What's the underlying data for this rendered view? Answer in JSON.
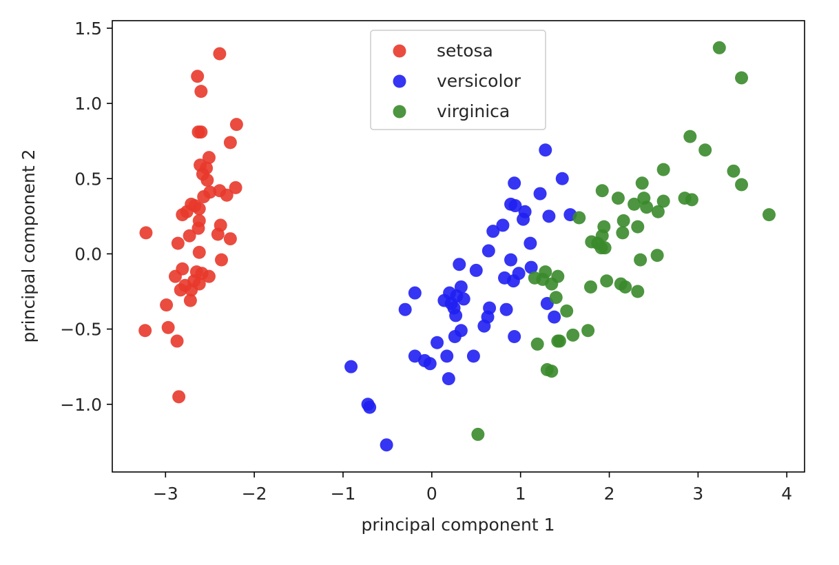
{
  "chart_data": {
    "type": "scatter",
    "xlabel": "principal component 1",
    "ylabel": "principal component 2",
    "xlim": [
      -3.6,
      4.2
    ],
    "ylim": [
      -1.45,
      1.55
    ],
    "xticks": [
      -3,
      -2,
      -1,
      0,
      1,
      2,
      3,
      4
    ],
    "yticks": [
      -1.0,
      -0.5,
      0.0,
      0.5,
      1.0,
      1.5
    ],
    "xtick_labels": [
      "−3",
      "−2",
      "−1",
      "0",
      "1",
      "2",
      "3",
      "4"
    ],
    "ytick_labels": [
      "−1.0",
      "−0.5",
      "0.0",
      "0.5",
      "1.0",
      "1.5"
    ],
    "grid": false,
    "legend_position": "top-center",
    "series": [
      {
        "name": "setosa",
        "color": "#e8392b",
        "points": [
          [
            -2.39,
            1.33
          ],
          [
            -2.64,
            1.18
          ],
          [
            -2.6,
            1.08
          ],
          [
            -2.63,
            0.81
          ],
          [
            -2.6,
            0.81
          ],
          [
            -2.2,
            0.86
          ],
          [
            -2.27,
            0.74
          ],
          [
            -2.51,
            0.64
          ],
          [
            -2.61,
            0.59
          ],
          [
            -2.54,
            0.57
          ],
          [
            -2.58,
            0.53
          ],
          [
            -2.53,
            0.49
          ],
          [
            -2.21,
            0.44
          ],
          [
            -2.39,
            0.42
          ],
          [
            -2.5,
            0.41
          ],
          [
            -2.31,
            0.39
          ],
          [
            -2.57,
            0.38
          ],
          [
            -2.71,
            0.33
          ],
          [
            -2.67,
            0.32
          ],
          [
            -2.62,
            0.3
          ],
          [
            -2.76,
            0.28
          ],
          [
            -2.81,
            0.26
          ],
          [
            -2.62,
            0.22
          ],
          [
            -2.38,
            0.19
          ],
          [
            -2.63,
            0.17
          ],
          [
            -3.22,
            0.14
          ],
          [
            -2.41,
            0.13
          ],
          [
            -2.73,
            0.12
          ],
          [
            -2.27,
            0.1
          ],
          [
            -2.86,
            0.07
          ],
          [
            -2.62,
            0.01
          ],
          [
            -2.37,
            -0.04
          ],
          [
            -2.81,
            -0.1
          ],
          [
            -2.65,
            -0.12
          ],
          [
            -2.59,
            -0.13
          ],
          [
            -2.89,
            -0.15
          ],
          [
            -2.51,
            -0.15
          ],
          [
            -2.68,
            -0.18
          ],
          [
            -2.62,
            -0.2
          ],
          [
            -2.78,
            -0.21
          ],
          [
            -2.83,
            -0.24
          ],
          [
            -2.71,
            -0.24
          ],
          [
            -2.72,
            -0.31
          ],
          [
            -2.99,
            -0.34
          ],
          [
            -2.97,
            -0.49
          ],
          [
            -3.23,
            -0.51
          ],
          [
            -2.87,
            -0.58
          ],
          [
            -2.85,
            -0.95
          ]
        ]
      },
      {
        "name": "versicolor",
        "color": "#1f1ff2",
        "points": [
          [
            1.28,
            0.69
          ],
          [
            1.47,
            0.5
          ],
          [
            0.93,
            0.47
          ],
          [
            1.22,
            0.4
          ],
          [
            0.89,
            0.33
          ],
          [
            0.94,
            0.32
          ],
          [
            1.05,
            0.28
          ],
          [
            1.32,
            0.25
          ],
          [
            1.56,
            0.26
          ],
          [
            1.03,
            0.23
          ],
          [
            0.8,
            0.19
          ],
          [
            0.69,
            0.15
          ],
          [
            1.11,
            0.07
          ],
          [
            0.64,
            0.02
          ],
          [
            0.89,
            -0.04
          ],
          [
            0.31,
            -0.07
          ],
          [
            0.5,
            -0.11
          ],
          [
            1.12,
            -0.09
          ],
          [
            0.98,
            -0.13
          ],
          [
            0.82,
            -0.16
          ],
          [
            0.92,
            -0.18
          ],
          [
            0.2,
            -0.26
          ],
          [
            0.33,
            -0.22
          ],
          [
            -0.19,
            -0.26
          ],
          [
            0.28,
            -0.28
          ],
          [
            0.14,
            -0.31
          ],
          [
            0.36,
            -0.3
          ],
          [
            0.22,
            -0.33
          ],
          [
            1.3,
            -0.33
          ],
          [
            0.65,
            -0.36
          ],
          [
            0.25,
            -0.36
          ],
          [
            0.84,
            -0.37
          ],
          [
            -0.3,
            -0.37
          ],
          [
            0.27,
            -0.41
          ],
          [
            1.38,
            -0.42
          ],
          [
            0.63,
            -0.42
          ],
          [
            0.59,
            -0.48
          ],
          [
            0.33,
            -0.51
          ],
          [
            0.26,
            -0.55
          ],
          [
            0.93,
            -0.55
          ],
          [
            0.06,
            -0.59
          ],
          [
            0.47,
            -0.68
          ],
          [
            -0.19,
            -0.68
          ],
          [
            0.17,
            -0.68
          ],
          [
            -0.08,
            -0.71
          ],
          [
            -0.02,
            -0.73
          ],
          [
            -0.91,
            -0.75
          ],
          [
            0.19,
            -0.83
          ],
          [
            -0.72,
            -1.0
          ],
          [
            -0.7,
            -1.02
          ],
          [
            -0.51,
            -1.27
          ]
        ]
      },
      {
        "name": "virginica",
        "color": "#3a8a2b",
        "points": [
          [
            3.24,
            1.37
          ],
          [
            3.49,
            1.17
          ],
          [
            2.91,
            0.78
          ],
          [
            3.08,
            0.69
          ],
          [
            2.61,
            0.56
          ],
          [
            3.4,
            0.55
          ],
          [
            2.37,
            0.47
          ],
          [
            3.49,
            0.46
          ],
          [
            1.92,
            0.42
          ],
          [
            2.1,
            0.37
          ],
          [
            2.39,
            0.37
          ],
          [
            2.85,
            0.37
          ],
          [
            2.93,
            0.36
          ],
          [
            2.61,
            0.35
          ],
          [
            2.28,
            0.33
          ],
          [
            2.42,
            0.31
          ],
          [
            2.55,
            0.28
          ],
          [
            3.8,
            0.26
          ],
          [
            1.66,
            0.24
          ],
          [
            2.16,
            0.22
          ],
          [
            1.94,
            0.18
          ],
          [
            2.32,
            0.18
          ],
          [
            2.15,
            0.14
          ],
          [
            1.92,
            0.12
          ],
          [
            1.8,
            0.08
          ],
          [
            1.87,
            0.07
          ],
          [
            1.91,
            0.04
          ],
          [
            1.95,
            0.04
          ],
          [
            2.54,
            -0.01
          ],
          [
            2.35,
            -0.04
          ],
          [
            1.28,
            -0.12
          ],
          [
            1.42,
            -0.15
          ],
          [
            1.16,
            -0.16
          ],
          [
            1.25,
            -0.17
          ],
          [
            1.97,
            -0.18
          ],
          [
            1.35,
            -0.2
          ],
          [
            2.13,
            -0.2
          ],
          [
            2.18,
            -0.22
          ],
          [
            1.79,
            -0.22
          ],
          [
            2.32,
            -0.25
          ],
          [
            1.4,
            -0.29
          ],
          [
            1.52,
            -0.38
          ],
          [
            1.76,
            -0.51
          ],
          [
            1.59,
            -0.54
          ],
          [
            1.44,
            -0.58
          ],
          [
            1.42,
            -0.58
          ],
          [
            1.19,
            -0.6
          ],
          [
            1.3,
            -0.77
          ],
          [
            1.35,
            -0.78
          ],
          [
            0.52,
            -1.2
          ]
        ]
      }
    ]
  }
}
